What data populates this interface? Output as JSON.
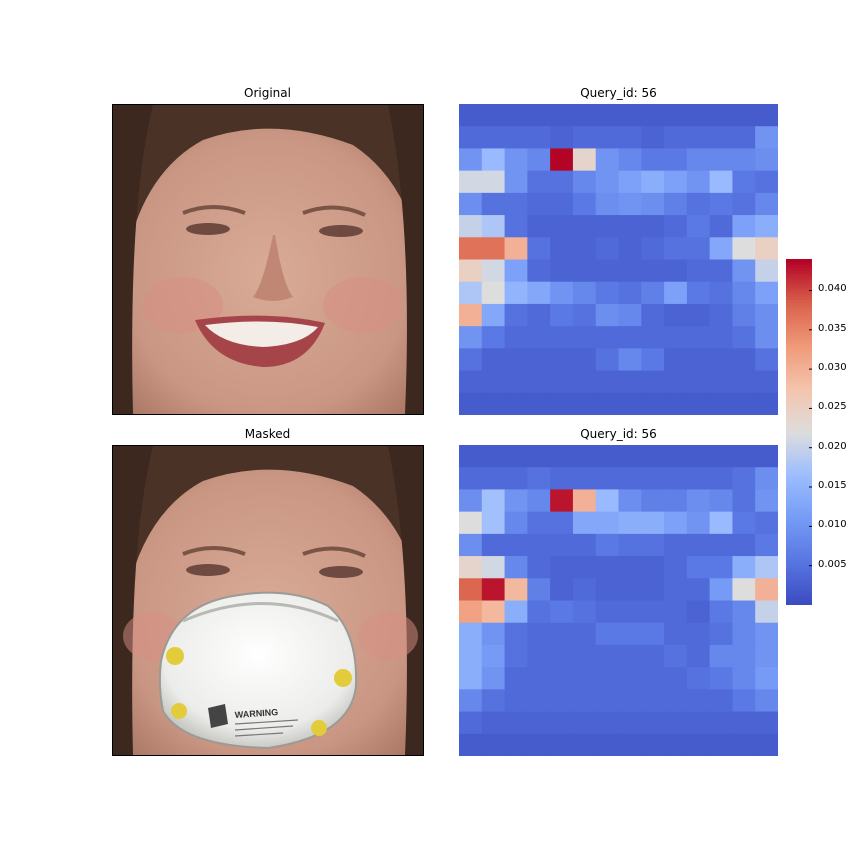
{
  "panels": {
    "original_title": "Original",
    "masked_title": "Masked",
    "heatmap_top_title": "Query_id: 56",
    "heatmap_bottom_title": "Query_id: 56"
  },
  "mask_text": "WARNING",
  "colors": {
    "cmap_low": "#3b4cc0",
    "cmap_mid": "#dddddd",
    "cmap_high": "#b40426",
    "skin": "#c99683",
    "hair": "#4a3226",
    "mask": "#f2f2f0"
  },
  "chart_data": [
    {
      "type": "heatmap",
      "title": "Query_id: 56",
      "rows": 14,
      "cols": 14,
      "vmin": 0.0,
      "vmax": 0.044,
      "values": [
        [
          0.002,
          0.002,
          0.002,
          0.002,
          0.002,
          0.002,
          0.002,
          0.002,
          0.002,
          0.002,
          0.002,
          0.002,
          0.002,
          0.002
        ],
        [
          0.004,
          0.004,
          0.004,
          0.004,
          0.003,
          0.004,
          0.004,
          0.004,
          0.003,
          0.004,
          0.004,
          0.004,
          0.004,
          0.01
        ],
        [
          0.01,
          0.016,
          0.01,
          0.008,
          0.044,
          0.024,
          0.01,
          0.008,
          0.006,
          0.006,
          0.008,
          0.008,
          0.008,
          0.009
        ],
        [
          0.021,
          0.021,
          0.01,
          0.005,
          0.005,
          0.008,
          0.01,
          0.012,
          0.014,
          0.012,
          0.01,
          0.016,
          0.006,
          0.005
        ],
        [
          0.009,
          0.005,
          0.005,
          0.004,
          0.004,
          0.006,
          0.009,
          0.01,
          0.009,
          0.007,
          0.005,
          0.006,
          0.005,
          0.008
        ],
        [
          0.02,
          0.018,
          0.005,
          0.003,
          0.003,
          0.003,
          0.003,
          0.003,
          0.003,
          0.004,
          0.006,
          0.004,
          0.012,
          0.014
        ],
        [
          0.037,
          0.037,
          0.03,
          0.005,
          0.003,
          0.003,
          0.004,
          0.003,
          0.004,
          0.005,
          0.005,
          0.013,
          0.022,
          0.025
        ],
        [
          0.025,
          0.021,
          0.012,
          0.004,
          0.003,
          0.003,
          0.003,
          0.003,
          0.003,
          0.003,
          0.004,
          0.004,
          0.01,
          0.02
        ],
        [
          0.018,
          0.022,
          0.015,
          0.013,
          0.01,
          0.008,
          0.006,
          0.005,
          0.007,
          0.012,
          0.006,
          0.005,
          0.008,
          0.012
        ],
        [
          0.03,
          0.013,
          0.005,
          0.004,
          0.006,
          0.005,
          0.009,
          0.008,
          0.004,
          0.003,
          0.003,
          0.004,
          0.007,
          0.009
        ],
        [
          0.01,
          0.006,
          0.004,
          0.004,
          0.004,
          0.004,
          0.004,
          0.004,
          0.004,
          0.004,
          0.004,
          0.004,
          0.005,
          0.009
        ],
        [
          0.005,
          0.003,
          0.003,
          0.003,
          0.003,
          0.003,
          0.005,
          0.008,
          0.006,
          0.003,
          0.003,
          0.003,
          0.003,
          0.005
        ],
        [
          0.003,
          0.003,
          0.003,
          0.003,
          0.003,
          0.003,
          0.003,
          0.003,
          0.003,
          0.003,
          0.003,
          0.003,
          0.003,
          0.003
        ],
        [
          0.002,
          0.002,
          0.002,
          0.002,
          0.002,
          0.002,
          0.002,
          0.002,
          0.002,
          0.002,
          0.002,
          0.002,
          0.002,
          0.002
        ]
      ]
    },
    {
      "type": "heatmap",
      "title": "Query_id: 56",
      "rows": 14,
      "cols": 14,
      "vmin": 0.0,
      "vmax": 0.044,
      "values": [
        [
          0.002,
          0.002,
          0.002,
          0.002,
          0.002,
          0.002,
          0.002,
          0.002,
          0.002,
          0.002,
          0.002,
          0.002,
          0.002,
          0.002
        ],
        [
          0.004,
          0.004,
          0.004,
          0.005,
          0.004,
          0.004,
          0.004,
          0.004,
          0.004,
          0.004,
          0.004,
          0.004,
          0.005,
          0.009
        ],
        [
          0.009,
          0.017,
          0.01,
          0.008,
          0.043,
          0.03,
          0.016,
          0.009,
          0.007,
          0.007,
          0.009,
          0.008,
          0.005,
          0.01
        ],
        [
          0.022,
          0.017,
          0.008,
          0.005,
          0.005,
          0.013,
          0.013,
          0.014,
          0.014,
          0.012,
          0.01,
          0.016,
          0.006,
          0.005
        ],
        [
          0.009,
          0.004,
          0.004,
          0.004,
          0.004,
          0.004,
          0.006,
          0.005,
          0.005,
          0.004,
          0.004,
          0.004,
          0.004,
          0.006
        ],
        [
          0.024,
          0.021,
          0.008,
          0.004,
          0.003,
          0.003,
          0.003,
          0.003,
          0.003,
          0.004,
          0.006,
          0.006,
          0.014,
          0.018
        ],
        [
          0.038,
          0.043,
          0.029,
          0.007,
          0.003,
          0.004,
          0.003,
          0.003,
          0.003,
          0.004,
          0.004,
          0.011,
          0.022,
          0.03
        ],
        [
          0.032,
          0.029,
          0.014,
          0.005,
          0.006,
          0.005,
          0.004,
          0.004,
          0.004,
          0.004,
          0.003,
          0.006,
          0.008,
          0.02
        ],
        [
          0.014,
          0.01,
          0.005,
          0.004,
          0.004,
          0.004,
          0.006,
          0.006,
          0.006,
          0.004,
          0.004,
          0.005,
          0.008,
          0.01
        ],
        [
          0.014,
          0.011,
          0.005,
          0.004,
          0.004,
          0.004,
          0.004,
          0.004,
          0.004,
          0.005,
          0.004,
          0.008,
          0.008,
          0.01
        ],
        [
          0.014,
          0.01,
          0.004,
          0.004,
          0.004,
          0.004,
          0.004,
          0.004,
          0.004,
          0.004,
          0.005,
          0.006,
          0.008,
          0.011
        ],
        [
          0.008,
          0.005,
          0.004,
          0.004,
          0.004,
          0.004,
          0.004,
          0.004,
          0.004,
          0.004,
          0.004,
          0.004,
          0.006,
          0.008
        ],
        [
          0.004,
          0.003,
          0.003,
          0.003,
          0.003,
          0.003,
          0.003,
          0.003,
          0.003,
          0.003,
          0.003,
          0.003,
          0.003,
          0.003
        ],
        [
          0.002,
          0.002,
          0.002,
          0.002,
          0.002,
          0.002,
          0.002,
          0.002,
          0.002,
          0.002,
          0.002,
          0.002,
          0.002,
          0.002
        ]
      ]
    }
  ],
  "colorbar": {
    "vmin": 0.0,
    "vmax": 0.044,
    "ticks": [
      "0.005",
      "0.010",
      "0.015",
      "0.020",
      "0.025",
      "0.030",
      "0.035",
      "0.040"
    ]
  }
}
